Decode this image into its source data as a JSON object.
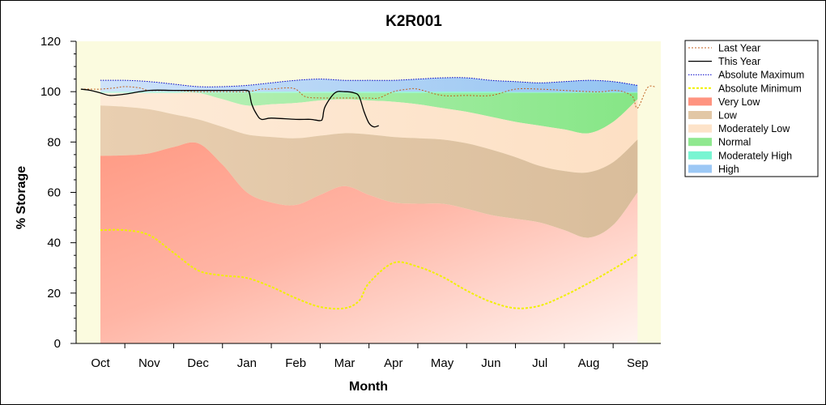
{
  "chart_data": {
    "type": "area",
    "title": "K2R001",
    "xlabel": "Month",
    "ylabel": "% Storage",
    "ylim": [
      0,
      120
    ],
    "yticks": [
      0,
      20,
      40,
      60,
      80,
      100,
      120
    ],
    "months": [
      "Oct",
      "Nov",
      "Dec",
      "Jan",
      "Feb",
      "Mar",
      "Apr",
      "May",
      "Jun",
      "Jul",
      "Aug",
      "Sep"
    ],
    "x_range_months": [
      -0.45,
      11.5
    ],
    "band_x": [
      0,
      0.5,
      1,
      1.5,
      2,
      2.5,
      3,
      3.5,
      4,
      4.5,
      5,
      5.5,
      6,
      6.5,
      7,
      7.5,
      8,
      8.5,
      9,
      9.5,
      10,
      10.5,
      11
    ],
    "bands": {
      "very_low_top": [
        74.5,
        74.7,
        75.5,
        78,
        79.5,
        71,
        60,
        56,
        55,
        59,
        62.5,
        59,
        56,
        55.5,
        55.5,
        53.5,
        51,
        49.5,
        48,
        45,
        42,
        47,
        60
      ],
      "low_top": [
        94.5,
        94,
        93,
        91,
        89,
        86,
        83,
        82,
        81.5,
        82.5,
        83.5,
        83,
        82,
        81.5,
        81,
        79.5,
        77,
        74,
        70.5,
        68.5,
        68,
        72,
        81
      ],
      "moderately_low_top": [
        99.5,
        99.5,
        99.5,
        99.5,
        99.5,
        97,
        94.5,
        95,
        95.5,
        96.5,
        97,
        96.5,
        96,
        95,
        93.5,
        92,
        90,
        88,
        86.5,
        85,
        83.5,
        88,
        97
      ],
      "normal_top": [
        99.5,
        99.5,
        99.5,
        99.5,
        99.5,
        99.5,
        99.5,
        99.5,
        99.5,
        99.5,
        99.5,
        99.5,
        99.5,
        99.5,
        99.5,
        99.5,
        99.5,
        99.5,
        99.5,
        99.5,
        99.5,
        99.5,
        99.5
      ],
      "moderately_high_top": [
        100,
        100,
        100,
        100,
        100,
        100,
        100,
        100,
        100,
        100,
        100,
        100,
        100,
        100,
        100,
        100,
        100,
        99.8,
        99.8,
        99.8,
        99.8,
        99.8,
        99.8
      ],
      "high_top": [
        104.5,
        104.5,
        104,
        103,
        102,
        102,
        102.5,
        103.5,
        104.5,
        105,
        104.5,
        104.5,
        104.5,
        105,
        105.5,
        105.5,
        104.5,
        104,
        103.5,
        104,
        104.5,
        104,
        102.5
      ]
    },
    "series": [
      {
        "name": "Last Year",
        "x": [
          -0.4,
          -0.2,
          0,
          0.3,
          0.5,
          0.8,
          1,
          1.5,
          2,
          2.5,
          3,
          3.3,
          3.5,
          3.8,
          4,
          4.2,
          4.5,
          4.8,
          5,
          5.3,
          5.5,
          5.7,
          6,
          6.3,
          6.5,
          7,
          7.5,
          8,
          8.5,
          9,
          9.5,
          10,
          10.3,
          10.5,
          10.7,
          10.9,
          11,
          11.2,
          11.35
        ],
        "y": [
          101,
          101,
          101,
          101.5,
          102,
          101.5,
          100.5,
          100.5,
          100,
          100,
          100,
          101,
          101,
          101.5,
          101,
          98,
          97.5,
          97.5,
          97.5,
          97.5,
          97.5,
          97.5,
          100,
          101,
          101,
          98.5,
          98.5,
          98.5,
          101,
          101,
          100.5,
          100,
          100,
          100.5,
          100,
          98,
          93.5,
          101.5,
          102
        ]
      },
      {
        "name": "This Year",
        "x": [
          -0.4,
          -0.2,
          0,
          0.2,
          0.5,
          1,
          1.5,
          2,
          2.5,
          2.8,
          3,
          3.05,
          3.1,
          3.2,
          3.3,
          3.5,
          4,
          4.3,
          4.5,
          4.55,
          4.6,
          4.8,
          5,
          5.2,
          5.3,
          5.4,
          5.5,
          5.6,
          5.7
        ],
        "y": [
          101,
          100.5,
          99.5,
          98.5,
          99,
          100.5,
          100.5,
          100.5,
          100.5,
          100.5,
          100.5,
          99.5,
          95,
          91,
          89,
          89.5,
          89,
          89,
          88.5,
          89.5,
          94,
          99.5,
          100,
          99.5,
          98,
          92,
          87.5,
          86,
          86.5
        ]
      },
      {
        "name": "Absolute Maximum",
        "x": [
          0,
          0.5,
          1,
          1.5,
          2,
          2.5,
          3,
          3.5,
          4,
          4.5,
          5,
          5.5,
          6,
          6.5,
          7,
          7.5,
          8,
          8.5,
          9,
          9.5,
          10,
          10.5,
          11
        ],
        "y": [
          104.5,
          104.5,
          104,
          103,
          102,
          102,
          102.5,
          103.5,
          104.5,
          105,
          104.5,
          104.5,
          104.5,
          105,
          105.5,
          105.5,
          104.5,
          104,
          103.5,
          104,
          104.5,
          104,
          102.5
        ]
      },
      {
        "name": "Absolute Minimum",
        "x": [
          0,
          0.5,
          1,
          1.5,
          2,
          2.5,
          3,
          3.5,
          4,
          4.5,
          5,
          5.3,
          5.5,
          6,
          6.5,
          7,
          7.5,
          8,
          8.5,
          9,
          9.5,
          10,
          10.5,
          11
        ],
        "y": [
          45,
          45,
          43,
          36,
          29,
          27,
          26,
          22.5,
          18,
          14.5,
          14,
          17,
          24,
          32,
          30.5,
          26.5,
          21,
          16.5,
          14,
          15,
          19,
          24,
          29.5,
          35.5
        ]
      },
      {
        "name": "Very Low"
      },
      {
        "name": "Low"
      },
      {
        "name": "Moderately Low"
      },
      {
        "name": "Normal"
      },
      {
        "name": "Moderately High"
      },
      {
        "name": "High"
      }
    ],
    "legend_position": "right",
    "grid": false,
    "colors": {
      "very_low": "#ff9480",
      "low": "#e2c7a6",
      "moderately_low": "#fde3c9",
      "normal": "#8fe88f",
      "moderately_high": "#79f5d2",
      "high": "#9cc8f5",
      "last_year": "#c06020",
      "this_year": "#000000",
      "absolute_maximum": "#0000c8",
      "absolute_minimum": "#f0f000",
      "plot_background": "#fbfbdf"
    }
  }
}
